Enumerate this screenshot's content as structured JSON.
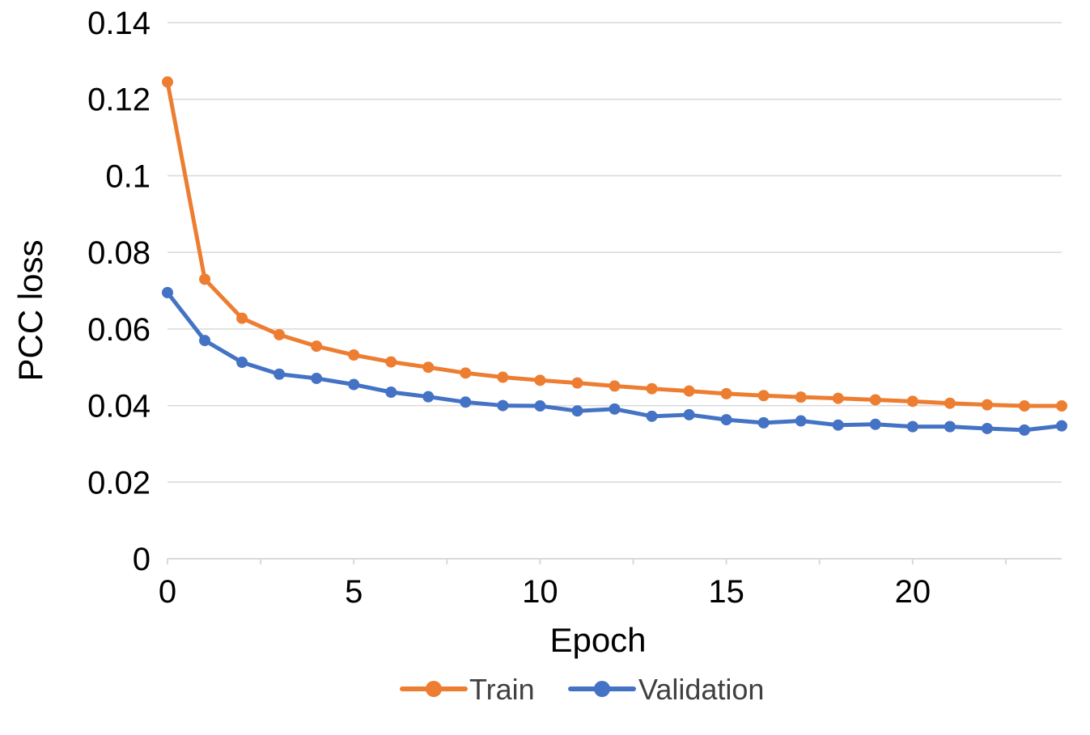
{
  "chart_data": {
    "type": "line",
    "title": "",
    "xlabel": "Epoch",
    "ylabel": "PCC loss",
    "x": [
      0,
      1,
      2,
      3,
      4,
      5,
      6,
      7,
      8,
      9,
      10,
      11,
      12,
      13,
      14,
      15,
      16,
      17,
      18,
      19,
      20,
      21,
      22,
      23,
      24
    ],
    "xlim": [
      0,
      24
    ],
    "ylim": [
      0,
      0.14
    ],
    "x_ticks": [
      "0",
      "5",
      "10",
      "15",
      "20"
    ],
    "y_ticks": [
      "0",
      "0.02",
      "0.04",
      "0.06",
      "0.08",
      "0.1",
      "0.12",
      "0.14"
    ],
    "grid": "horizontal",
    "legend_position": "bottom",
    "series": [
      {
        "name": "Train",
        "color": "#ED7D31",
        "values": [
          0.1245,
          0.073,
          0.0628,
          0.0585,
          0.0555,
          0.0532,
          0.0514,
          0.05,
          0.0485,
          0.0474,
          0.0466,
          0.0459,
          0.0451,
          0.0444,
          0.0438,
          0.0431,
          0.0426,
          0.0422,
          0.0419,
          0.0415,
          0.0411,
          0.0406,
          0.0402,
          0.0399,
          0.0399
        ]
      },
      {
        "name": "Validation",
        "color": "#4472C4",
        "values": [
          0.0695,
          0.057,
          0.0513,
          0.0482,
          0.0471,
          0.0455,
          0.0435,
          0.0423,
          0.0409,
          0.04,
          0.0399,
          0.0386,
          0.0391,
          0.0372,
          0.0376,
          0.0363,
          0.0355,
          0.036,
          0.0349,
          0.0351,
          0.0345,
          0.0345,
          0.034,
          0.0336,
          0.0347
        ]
      }
    ]
  },
  "colors": {
    "gridline": "#D9D9D9",
    "axis": "#D9D9D9"
  }
}
